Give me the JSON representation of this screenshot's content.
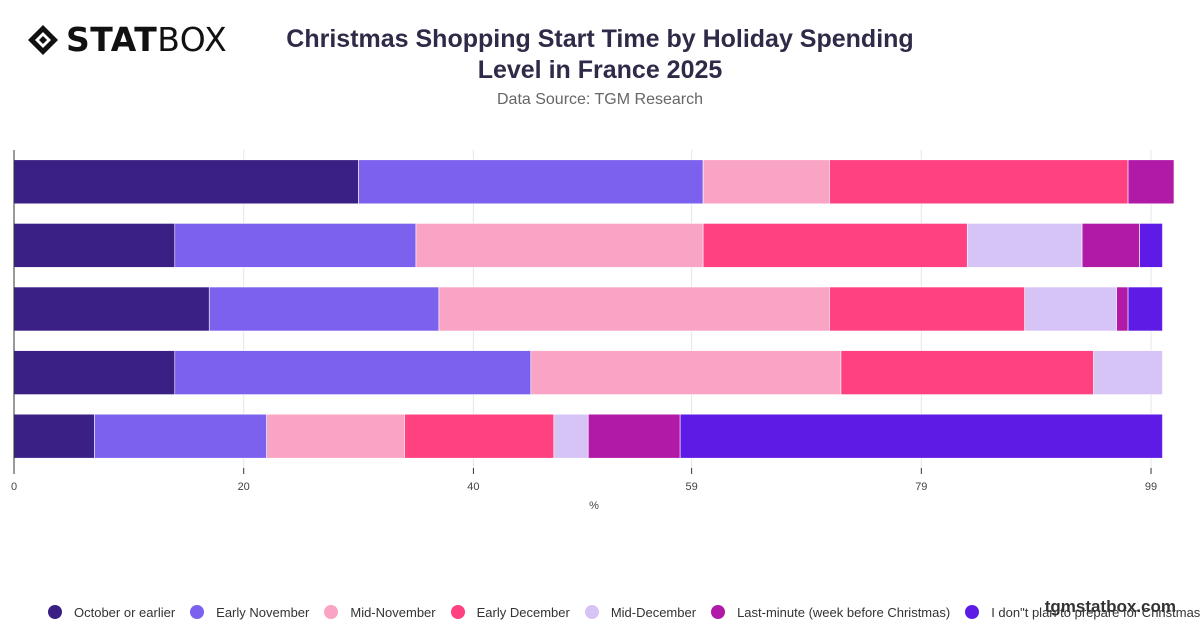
{
  "header": {
    "logo_text_bold": "STAT",
    "logo_text_light": "BOX",
    "title_line1": "Christmas Shopping Start Time by Holiday Spending",
    "title_line2": "Level in France 2025",
    "subtitle": "Data Source: TGM Research"
  },
  "watermark": "tgmstatbox.com",
  "chart_data": {
    "type": "bar",
    "orientation": "horizontal",
    "stacked": true,
    "categories": [
      "",
      "",
      "",
      "",
      ""
    ],
    "xlabel": "%",
    "ylabel": "",
    "xlim": [
      0,
      101
    ],
    "xticks": [
      0,
      20,
      40,
      59,
      79,
      99
    ],
    "xtick_labels": [
      "0",
      "20",
      "40",
      "59",
      "79",
      "99"
    ],
    "grid": true,
    "legend_position": "bottom",
    "series": [
      {
        "name": "October or earlier",
        "color": "#3a1f85",
        "values": [
          30,
          14,
          17,
          14,
          7
        ]
      },
      {
        "name": "Early November",
        "color": "#7b61ee",
        "values": [
          30,
          21,
          20,
          31,
          15
        ]
      },
      {
        "name": "Mid-November",
        "color": "#f9a3c5",
        "values": [
          11,
          25,
          34,
          27,
          12
        ]
      },
      {
        "name": "Early December",
        "color": "#ff4181",
        "values": [
          26,
          23,
          17,
          22,
          13
        ]
      },
      {
        "name": "Mid-December",
        "color": "#d7c4f7",
        "values": [
          0,
          10,
          8,
          6,
          3
        ]
      },
      {
        "name": "Last-minute (week before Christmas)",
        "color": "#b01aa7",
        "values": [
          4,
          5,
          1,
          0,
          8
        ]
      },
      {
        "name": "I don\"t plan to prepare for Christmas",
        "color": "#5e1be6",
        "values": [
          0,
          2,
          3,
          0,
          42
        ]
      }
    ]
  }
}
